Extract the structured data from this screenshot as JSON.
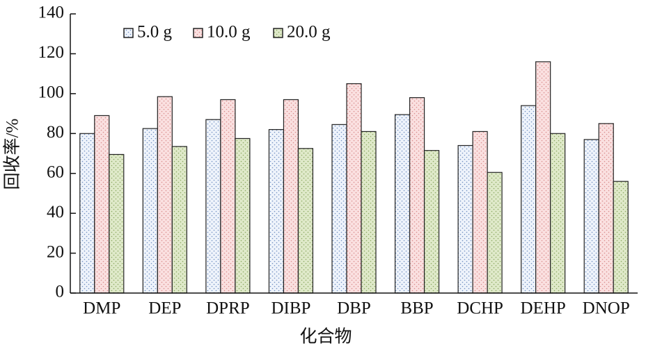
{
  "chart_data": {
    "type": "bar",
    "x_label": "化合物",
    "y_label": "回收率/%",
    "categories": [
      "DMP",
      "DEP",
      "DPRP",
      "DIBP",
      "DBP",
      "BBP",
      "DCHP",
      "DEHP",
      "DNOP"
    ],
    "series": [
      {
        "name": "5.0 g",
        "color": "#eef3fb",
        "values": [
          80,
          82.5,
          87,
          82,
          84.5,
          89.5,
          74,
          94,
          77
        ]
      },
      {
        "name": "10.0 g",
        "color": "#fae0e0",
        "values": [
          89,
          98.5,
          97,
          97,
          105,
          98,
          81,
          116,
          85
        ]
      },
      {
        "name": "20.0 g",
        "color": "#dfe9c9",
        "values": [
          69.5,
          73.5,
          77.5,
          72.5,
          81,
          71.5,
          60.5,
          80,
          56
        ]
      }
    ],
    "ylim": [
      0,
      140
    ],
    "yticks": [
      0,
      20,
      40,
      60,
      80,
      100,
      120,
      140
    ],
    "legend": "top-left",
    "grid": false
  }
}
